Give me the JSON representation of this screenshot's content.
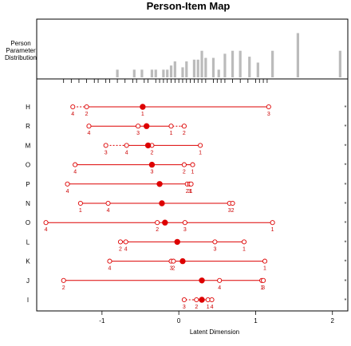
{
  "chart_data": {
    "type": "person-item-map",
    "title": "Person-Item Map",
    "panel_label": [
      "Person",
      "Parameter",
      "Distribution"
    ],
    "xlabel": "Latent Dimension",
    "xlim": [
      -1.85,
      2.2
    ],
    "x_ticks": [
      -1,
      0,
      1,
      2
    ],
    "x_tick_labels": [
      "-1",
      "0",
      "1",
      "2"
    ],
    "person_distribution": [
      {
        "x": -0.8,
        "h": 0.13
      },
      {
        "x": -0.58,
        "h": 0.13
      },
      {
        "x": -0.48,
        "h": 0.13
      },
      {
        "x": -0.35,
        "h": 0.13
      },
      {
        "x": -0.3,
        "h": 0.13
      },
      {
        "x": -0.2,
        "h": 0.13
      },
      {
        "x": -0.15,
        "h": 0.13
      },
      {
        "x": -0.1,
        "h": 0.2
      },
      {
        "x": -0.05,
        "h": 0.27
      },
      {
        "x": 0.05,
        "h": 0.17
      },
      {
        "x": 0.1,
        "h": 0.27
      },
      {
        "x": 0.2,
        "h": 0.3
      },
      {
        "x": 0.25,
        "h": 0.3
      },
      {
        "x": 0.3,
        "h": 0.45
      },
      {
        "x": 0.35,
        "h": 0.33
      },
      {
        "x": 0.45,
        "h": 0.33
      },
      {
        "x": 0.52,
        "h": 0.13
      },
      {
        "x": 0.6,
        "h": 0.4
      },
      {
        "x": 0.7,
        "h": 0.45
      },
      {
        "x": 0.8,
        "h": 0.45
      },
      {
        "x": 0.92,
        "h": 0.35
      },
      {
        "x": 1.03,
        "h": 0.25
      },
      {
        "x": 1.22,
        "h": 0.45
      },
      {
        "x": 1.55,
        "h": 0.75
      },
      {
        "x": 2.1,
        "h": 0.45
      }
    ],
    "rug": [
      -1.5,
      -1.4,
      -1.3,
      -1.2,
      -1.1,
      -1.05,
      -0.95,
      -0.9,
      -0.8,
      -0.7,
      -0.6,
      -0.55,
      -0.45,
      -0.4,
      -0.3,
      -0.25,
      -0.2,
      -0.15,
      -0.1,
      -0.05,
      0.0,
      0.05,
      0.1,
      0.15,
      0.2,
      0.25,
      0.3,
      0.35,
      0.45,
      0.5,
      0.55,
      0.6,
      0.7,
      0.8,
      0.9,
      1.0,
      1.05,
      1.1,
      1.15
    ],
    "items": [
      {
        "label": "H",
        "location": -0.47,
        "thresholds": [
          {
            "n": "4",
            "x": -1.38
          },
          {
            "n": "2",
            "x": -1.2
          },
          {
            "n": "1",
            "x": -0.47
          },
          {
            "n": "3",
            "x": 1.17
          }
        ],
        "thr_dash": [
          -1.35,
          -1.23
        ]
      },
      {
        "label": "R",
        "location": -0.42,
        "thresholds": [
          {
            "n": "4",
            "x": -1.17
          },
          {
            "n": "3",
            "x": -0.53
          },
          {
            "n": "1",
            "x": -0.1
          },
          {
            "n": "2",
            "x": 0.07
          }
        ],
        "thr_dash": [
          -0.06,
          0.03
        ]
      },
      {
        "label": "M",
        "location": -0.4,
        "thresholds": [
          {
            "n": "3",
            "x": -0.95
          },
          {
            "n": "4",
            "x": -0.68
          },
          {
            "n": "2",
            "x": -0.35
          },
          {
            "n": "1",
            "x": 0.28
          }
        ],
        "thr_dash": [
          -0.92,
          -0.71
        ]
      },
      {
        "label": "O",
        "location": -0.35,
        "thresholds": [
          {
            "n": "4",
            "x": -1.35
          },
          {
            "n": "3",
            "x": -0.35
          },
          {
            "n": "2",
            "x": 0.07
          },
          {
            "n": "1",
            "x": 0.18
          }
        ],
        "thr_dash": []
      },
      {
        "label": "P",
        "location": -0.25,
        "thresholds": [
          {
            "n": "4",
            "x": -1.45
          },
          {
            "n": "2",
            "x": 0.11
          },
          {
            "n": "3",
            "x": 0.14
          },
          {
            "n": "1",
            "x": 0.16
          }
        ],
        "thr_dash": []
      },
      {
        "label": "N",
        "location": -0.22,
        "thresholds": [
          {
            "n": "1",
            "x": -1.28
          },
          {
            "n": "4",
            "x": -0.92
          },
          {
            "n": "3",
            "x": 0.66
          },
          {
            "n": "2",
            "x": 0.7
          }
        ],
        "thr_dash": []
      },
      {
        "label": "O",
        "location": -0.18,
        "thresholds": [
          {
            "n": "4",
            "x": -1.73
          },
          {
            "n": "2",
            "x": -0.28
          },
          {
            "n": "3",
            "x": 0.08
          },
          {
            "n": "1",
            "x": 1.22
          }
        ],
        "thr_dash": []
      },
      {
        "label": "L",
        "location": -0.02,
        "thresholds": [
          {
            "n": "2",
            "x": -0.76
          },
          {
            "n": "4",
            "x": -0.69
          },
          {
            "n": "3",
            "x": 0.47
          },
          {
            "n": "1",
            "x": 0.85
          }
        ],
        "thr_dash": []
      },
      {
        "label": "K",
        "location": 0.05,
        "thresholds": [
          {
            "n": "4",
            "x": -0.9
          },
          {
            "n": "3",
            "x": -0.1
          },
          {
            "n": "2",
            "x": -0.07
          },
          {
            "n": "1",
            "x": 1.12
          }
        ],
        "thr_dash": []
      },
      {
        "label": "J",
        "location": 0.3,
        "thresholds": [
          {
            "n": "2",
            "x": -1.5
          },
          {
            "n": "4",
            "x": 0.53
          },
          {
            "n": "1",
            "x": 1.08
          },
          {
            "n": "3",
            "x": 1.1
          }
        ],
        "thr_dash": []
      },
      {
        "label": "I",
        "location": 0.3,
        "thresholds": [
          {
            "n": "3",
            "x": 0.07
          },
          {
            "n": "2",
            "x": 0.23
          },
          {
            "n": "1",
            "x": 0.38
          },
          {
            "n": "4",
            "x": 0.43
          }
        ],
        "thr_dash": [
          0.11,
          0.19
        ]
      }
    ],
    "marker_right": "*",
    "colors": {
      "item": "#dd0000",
      "histogram": "#bbbbbb",
      "axis": "#000000"
    }
  }
}
